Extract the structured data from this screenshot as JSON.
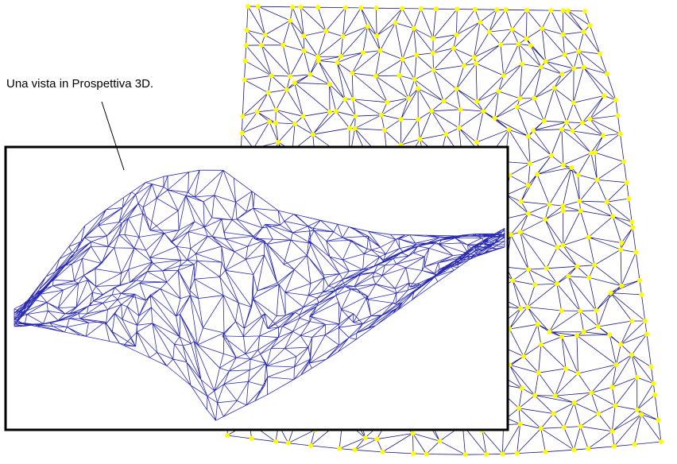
{
  "caption": "Una vista in Prospettiva 3D."
}
